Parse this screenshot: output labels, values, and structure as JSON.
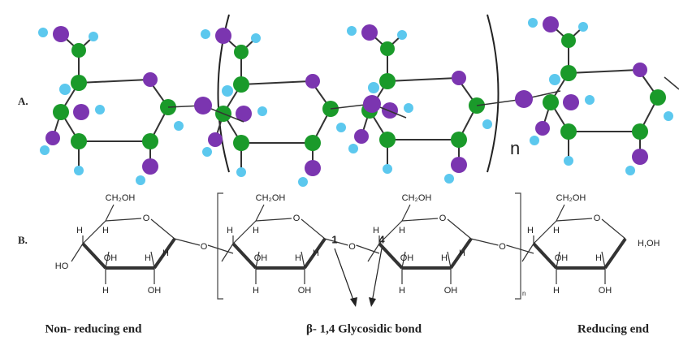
{
  "panel_a": {
    "label": "A.",
    "repeat": "n"
  },
  "panel_b": {
    "label": "B.",
    "repeat": "n",
    "rings": [
      {
        "ch2oh": "CH₂OH",
        "ring_o": "O",
        "h5": "H",
        "h4": "H",
        "c4_o": "HO",
        "oh3": "OH",
        "h3": "H",
        "h2": "H",
        "oh2": "OH",
        "h1": "H"
      },
      {
        "ch2oh": "CH₂OH",
        "ring_o": "O",
        "h5": "H",
        "h4": "H",
        "oh3": "OH",
        "h3": "H",
        "h2": "H",
        "oh2": "OH",
        "h1": "H"
      },
      {
        "ch2oh": "CH₂OH",
        "ring_o": "O",
        "h5": "H",
        "h4": "H",
        "oh3": "OH",
        "h3": "H",
        "h2": "H",
        "oh2": "OH",
        "h1": "H"
      },
      {
        "ch2oh": "CH₂OH",
        "ring_o": "O",
        "h5": "H",
        "h4": "H",
        "oh3": "OH",
        "h3": "H",
        "h2": "H",
        "oh2": "OH",
        "c1": "H,OH"
      }
    ],
    "links": [
      "O",
      "O",
      "O"
    ],
    "carbon_1": "1",
    "carbon_4": "4"
  },
  "captions": {
    "left": "Non- reducing end",
    "middle": "β- 1,4 Glycosidic bond",
    "right": "Reducing end"
  }
}
